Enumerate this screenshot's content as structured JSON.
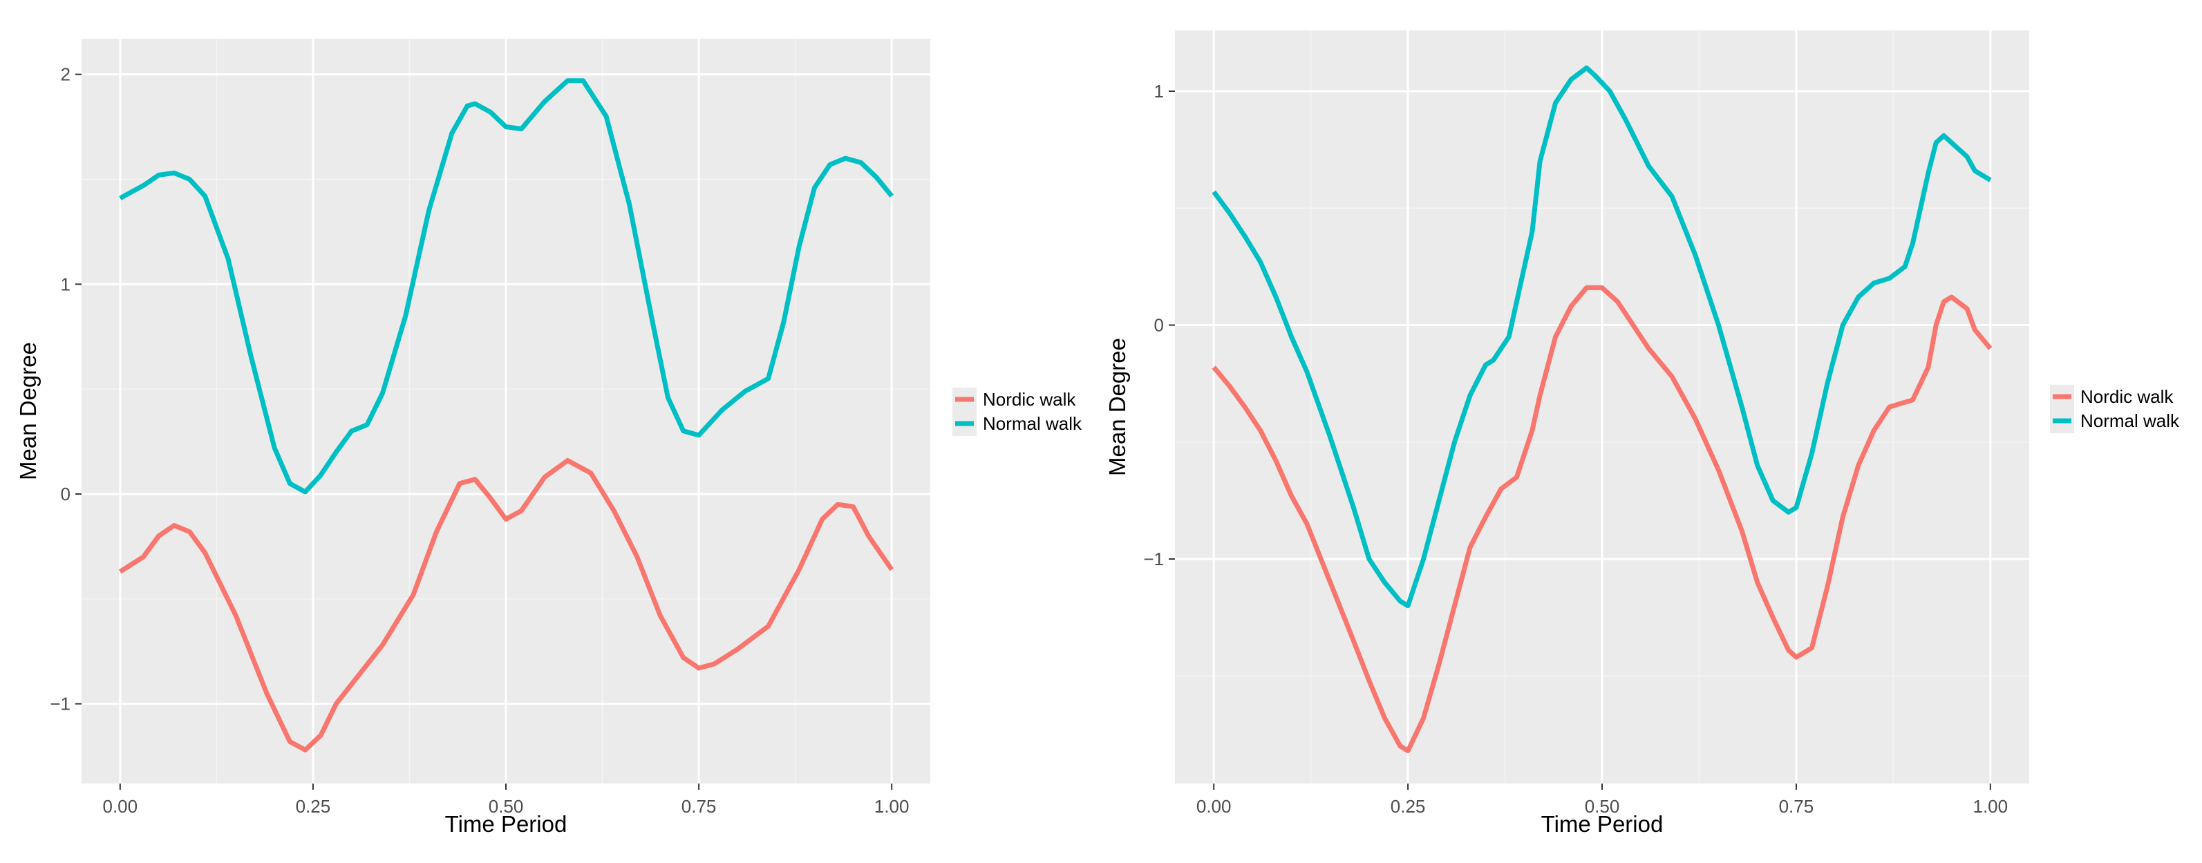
{
  "colors": {
    "panel_bg": "#EBEBEB",
    "grid_major": "#FFFFFF",
    "grid_minor": "#F4F4F4",
    "tick_text": "#4D4D4D",
    "axis_title": "#000000",
    "series": [
      "#F8766D",
      "#00BFC4"
    ]
  },
  "chart_data": [
    {
      "type": "line",
      "title": "",
      "xlabel": "Time Period",
      "ylabel": "Mean Degree",
      "xlim": [
        -0.05,
        1.05
      ],
      "ylim": [
        -1.38,
        2.17
      ],
      "x_ticks": [
        0,
        0.25,
        0.5,
        0.75,
        1
      ],
      "x_tick_labels": [
        "0.00",
        "0.25",
        "0.50",
        "0.75",
        "1.00"
      ],
      "y_ticks": [
        -1,
        0,
        1,
        2
      ],
      "y_tick_labels": [
        "−1",
        "0",
        "1",
        "2"
      ],
      "grid": true,
      "legend_position": "right",
      "series": [
        {
          "name": "Nordic walk",
          "x": [
            0,
            0.03,
            0.05,
            0.07,
            0.09,
            0.11,
            0.15,
            0.19,
            0.22,
            0.24,
            0.26,
            0.28,
            0.31,
            0.34,
            0.38,
            0.41,
            0.44,
            0.46,
            0.48,
            0.5,
            0.52,
            0.55,
            0.58,
            0.61,
            0.64,
            0.67,
            0.7,
            0.73,
            0.75,
            0.77,
            0.8,
            0.84,
            0.88,
            0.91,
            0.93,
            0.95,
            0.97,
            1
          ],
          "y": [
            -0.37,
            -0.3,
            -0.2,
            -0.15,
            -0.18,
            -0.28,
            -0.58,
            -0.95,
            -1.18,
            -1.22,
            -1.15,
            -1.0,
            -0.86,
            -0.72,
            -0.48,
            -0.18,
            0.05,
            0.07,
            -0.02,
            -0.12,
            -0.08,
            0.08,
            0.16,
            0.1,
            -0.08,
            -0.3,
            -0.58,
            -0.78,
            -0.83,
            -0.81,
            -0.74,
            -0.63,
            -0.36,
            -0.12,
            -0.05,
            -0.06,
            -0.2,
            -0.36
          ]
        },
        {
          "name": "Normal walk",
          "x": [
            0,
            0.03,
            0.05,
            0.07,
            0.09,
            0.11,
            0.14,
            0.17,
            0.2,
            0.22,
            0.24,
            0.26,
            0.28,
            0.3,
            0.32,
            0.34,
            0.37,
            0.4,
            0.43,
            0.45,
            0.46,
            0.48,
            0.5,
            0.52,
            0.55,
            0.58,
            0.6,
            0.63,
            0.66,
            0.69,
            0.71,
            0.73,
            0.75,
            0.78,
            0.81,
            0.84,
            0.86,
            0.88,
            0.9,
            0.92,
            0.94,
            0.96,
            0.98,
            1
          ],
          "y": [
            1.41,
            1.47,
            1.52,
            1.53,
            1.5,
            1.42,
            1.12,
            0.65,
            0.22,
            0.05,
            0.01,
            0.09,
            0.2,
            0.3,
            0.33,
            0.48,
            0.85,
            1.35,
            1.72,
            1.85,
            1.86,
            1.82,
            1.75,
            1.74,
            1.87,
            1.97,
            1.97,
            1.8,
            1.38,
            0.82,
            0.46,
            0.3,
            0.28,
            0.4,
            0.49,
            0.55,
            0.82,
            1.18,
            1.46,
            1.57,
            1.6,
            1.58,
            1.51,
            1.42
          ]
        }
      ]
    },
    {
      "type": "line",
      "title": "",
      "xlabel": "Time Period",
      "ylabel": "Mean Degree",
      "xlim": [
        -0.05,
        1.05
      ],
      "ylim": [
        -1.96,
        1.26
      ],
      "x_ticks": [
        0,
        0.25,
        0.5,
        0.75,
        1
      ],
      "x_tick_labels": [
        "0.00",
        "0.25",
        "0.50",
        "0.75",
        "1.00"
      ],
      "y_ticks": [
        -1,
        0,
        1
      ],
      "y_tick_labels": [
        "−1",
        "0",
        "1"
      ],
      "grid": true,
      "legend_position": "right",
      "series": [
        {
          "name": "Nordic walk",
          "x": [
            0,
            0.02,
            0.04,
            0.06,
            0.08,
            0.1,
            0.12,
            0.15,
            0.18,
            0.2,
            0.22,
            0.24,
            0.25,
            0.27,
            0.29,
            0.31,
            0.33,
            0.35,
            0.37,
            0.39,
            0.41,
            0.42,
            0.44,
            0.46,
            0.48,
            0.5,
            0.52,
            0.54,
            0.56,
            0.59,
            0.62,
            0.65,
            0.68,
            0.7,
            0.72,
            0.74,
            0.75,
            0.77,
            0.79,
            0.81,
            0.83,
            0.85,
            0.87,
            0.89,
            0.9,
            0.92,
            0.93,
            0.94,
            0.95,
            0.97,
            0.98,
            1
          ],
          "y": [
            -0.18,
            -0.26,
            -0.35,
            -0.45,
            -0.58,
            -0.73,
            -0.85,
            -1.1,
            -1.35,
            -1.52,
            -1.68,
            -1.8,
            -1.82,
            -1.68,
            -1.45,
            -1.2,
            -0.95,
            -0.82,
            -0.7,
            -0.65,
            -0.45,
            -0.3,
            -0.05,
            0.08,
            0.16,
            0.16,
            0.1,
            0.0,
            -0.1,
            -0.22,
            -0.4,
            -0.62,
            -0.88,
            -1.1,
            -1.25,
            -1.39,
            -1.42,
            -1.38,
            -1.12,
            -0.82,
            -0.6,
            -0.45,
            -0.35,
            -0.33,
            -0.32,
            -0.18,
            0.0,
            0.1,
            0.12,
            0.07,
            -0.02,
            -0.1
          ]
        },
        {
          "name": "Normal walk",
          "x": [
            0,
            0.02,
            0.04,
            0.06,
            0.08,
            0.1,
            0.12,
            0.15,
            0.18,
            0.2,
            0.22,
            0.24,
            0.25,
            0.27,
            0.29,
            0.31,
            0.33,
            0.35,
            0.36,
            0.38,
            0.39,
            0.41,
            0.42,
            0.44,
            0.46,
            0.48,
            0.49,
            0.51,
            0.53,
            0.56,
            0.59,
            0.62,
            0.65,
            0.68,
            0.7,
            0.72,
            0.74,
            0.75,
            0.77,
            0.79,
            0.81,
            0.83,
            0.85,
            0.87,
            0.89,
            0.9,
            0.92,
            0.93,
            0.94,
            0.95,
            0.97,
            0.98,
            1
          ],
          "y": [
            0.57,
            0.48,
            0.38,
            0.27,
            0.12,
            -0.05,
            -0.2,
            -0.48,
            -0.78,
            -1.0,
            -1.1,
            -1.18,
            -1.2,
            -1.0,
            -0.75,
            -0.5,
            -0.3,
            -0.17,
            -0.15,
            -0.05,
            0.1,
            0.4,
            0.7,
            0.95,
            1.05,
            1.1,
            1.07,
            1.0,
            0.88,
            0.68,
            0.55,
            0.3,
            0.0,
            -0.35,
            -0.6,
            -0.75,
            -0.8,
            -0.78,
            -0.55,
            -0.25,
            0.0,
            0.12,
            0.18,
            0.2,
            0.25,
            0.35,
            0.65,
            0.78,
            0.81,
            0.78,
            0.72,
            0.66,
            0.62
          ]
        }
      ]
    }
  ]
}
